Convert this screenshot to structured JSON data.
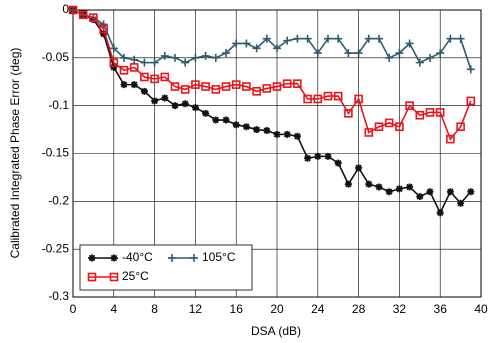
{
  "chart_data": {
    "type": "line",
    "x_label": "DSA (dB)",
    "y_label": "Calibrated Integrated Phase Error (deg)",
    "x": [
      0,
      1,
      2,
      3,
      4,
      5,
      6,
      7,
      8,
      9,
      10,
      11,
      12,
      13,
      14,
      15,
      16,
      17,
      18,
      19,
      20,
      21,
      22,
      23,
      24,
      25,
      26,
      27,
      28,
      29,
      30,
      31,
      32,
      33,
      34,
      35,
      36,
      37,
      38,
      39
    ],
    "xlim": [
      0,
      40
    ],
    "xticks": [
      0,
      4,
      8,
      12,
      16,
      20,
      24,
      28,
      32,
      36,
      40
    ],
    "ylim": [
      -0.3,
      0
    ],
    "yticks": [
      0,
      -0.05,
      -0.1,
      -0.15,
      -0.2,
      -0.25,
      -0.3
    ],
    "grid": true,
    "legend": "lower left",
    "series": [
      {
        "name": "-40°C",
        "color": "#111111",
        "marker": "star",
        "values": [
          0,
          -0.005,
          -0.01,
          -0.025,
          -0.06,
          -0.078,
          -0.078,
          -0.085,
          -0.095,
          -0.092,
          -0.1,
          -0.098,
          -0.102,
          -0.108,
          -0.115,
          -0.115,
          -0.12,
          -0.122,
          -0.125,
          -0.126,
          -0.13,
          -0.13,
          -0.132,
          -0.155,
          -0.153,
          -0.153,
          -0.16,
          -0.182,
          -0.165,
          -0.182,
          -0.185,
          -0.19,
          -0.187,
          -0.185,
          -0.195,
          -0.19,
          -0.212,
          -0.19,
          -0.202,
          -0.19
        ]
      },
      {
        "name": "105°C",
        "color": "#2e5e6e",
        "marker": "plus",
        "values": [
          0,
          -0.005,
          -0.008,
          -0.015,
          -0.04,
          -0.05,
          -0.052,
          -0.055,
          -0.055,
          -0.048,
          -0.05,
          -0.055,
          -0.05,
          -0.048,
          -0.05,
          -0.045,
          -0.035,
          -0.035,
          -0.04,
          -0.03,
          -0.04,
          -0.032,
          -0.03,
          -0.03,
          -0.045,
          -0.03,
          -0.03,
          -0.045,
          -0.045,
          -0.03,
          -0.03,
          -0.05,
          -0.045,
          -0.035,
          -0.055,
          -0.05,
          -0.045,
          -0.03,
          -0.03,
          -0.062
        ]
      },
      {
        "name": "25°C",
        "color": "#e8161b",
        "marker": "square",
        "values": [
          0,
          -0.005,
          -0.008,
          -0.02,
          -0.055,
          -0.063,
          -0.06,
          -0.07,
          -0.072,
          -0.07,
          -0.08,
          -0.083,
          -0.078,
          -0.08,
          -0.083,
          -0.08,
          -0.078,
          -0.08,
          -0.085,
          -0.082,
          -0.08,
          -0.077,
          -0.077,
          -0.093,
          -0.093,
          -0.09,
          -0.09,
          -0.108,
          -0.093,
          -0.128,
          -0.122,
          -0.118,
          -0.122,
          -0.1,
          -0.11,
          -0.107,
          -0.107,
          -0.135,
          -0.122,
          -0.095
        ]
      }
    ]
  }
}
